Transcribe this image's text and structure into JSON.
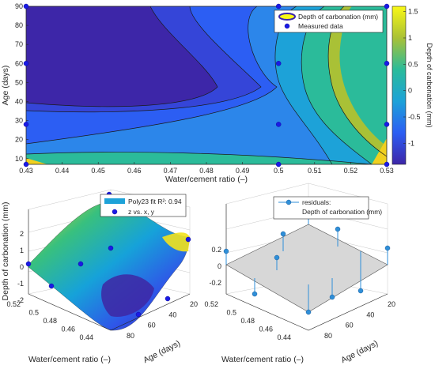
{
  "chart_data": [
    {
      "type": "contour",
      "xlabel": "Water/cement ratio (–)",
      "ylabel": "Age (days)",
      "xlim": [
        0.43,
        0.53
      ],
      "ylim": [
        7,
        90
      ],
      "x_ticks": [
        "0.43",
        "0.44",
        "0.45",
        "0.46",
        "0.47",
        "0.48",
        "0.49",
        "0.5",
        "0.51",
        "0.52",
        "0.53"
      ],
      "y_ticks": [
        "10",
        "20",
        "30",
        "40",
        "50",
        "60",
        "70",
        "80",
        "90"
      ],
      "colorbar": {
        "label": "Depth of carbonation (mm)",
        "ticks": [
          "-1",
          "-0.5",
          "0",
          "0.5",
          "1",
          "1.5"
        ],
        "range": [
          -1.4,
          1.6
        ]
      },
      "legend": {
        "placement": "top-right",
        "entries": [
          "Depth of carbonation (mm)",
          "Measured data"
        ]
      },
      "measured_points": [
        {
          "x": 0.43,
          "y": 7
        },
        {
          "x": 0.43,
          "y": 28
        },
        {
          "x": 0.43,
          "y": 60
        },
        {
          "x": 0.43,
          "y": 90
        },
        {
          "x": 0.5,
          "y": 7
        },
        {
          "x": 0.5,
          "y": 28
        },
        {
          "x": 0.5,
          "y": 60
        },
        {
          "x": 0.5,
          "y": 90
        },
        {
          "x": 0.53,
          "y": 7
        },
        {
          "x": 0.53,
          "y": 28
        },
        {
          "x": 0.53,
          "y": 60
        },
        {
          "x": 0.53,
          "y": 90
        }
      ]
    },
    {
      "type": "surface",
      "xlabel": "Age (days)",
      "ylabel": "Water/cement ratio (–)",
      "zlabel": "Depth of carbonation (mm)",
      "x_ticks": [
        "20",
        "40",
        "60",
        "80"
      ],
      "y_ticks": [
        "0.44",
        "0.46",
        "0.48",
        "0.5",
        "0.52"
      ],
      "z_ticks": [
        "-2",
        "-1",
        "0",
        "1",
        "2"
      ],
      "legend": {
        "placement": "top",
        "entries": [
          "Poly23 fit R²: 0.94",
          "z vs. x, y"
        ]
      }
    },
    {
      "type": "stem3",
      "xlabel": "Age (days)",
      "ylabel": "Water/cement ratio (–)",
      "x_ticks": [
        "20",
        "40",
        "60",
        "80"
      ],
      "y_ticks": [
        "0.44",
        "0.46",
        "0.48",
        "0.5",
        "0.52"
      ],
      "z_ticks": [
        "-0.2",
        "0",
        "0.2"
      ],
      "legend": {
        "placement": "top",
        "entries": [
          "residuals:",
          "Depth of carbonation (mm)"
        ]
      }
    }
  ]
}
